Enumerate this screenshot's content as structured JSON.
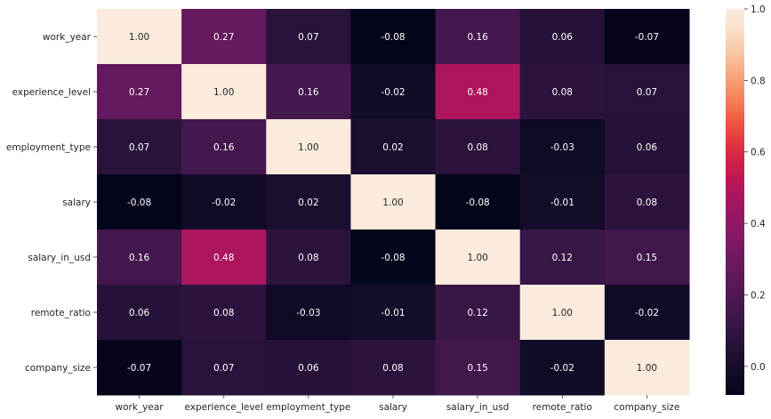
{
  "chart_data": {
    "type": "heatmap",
    "title": "",
    "xlabel": "",
    "ylabel": "",
    "rows": [
      "work_year",
      "experience_level",
      "employment_type",
      "salary",
      "salary_in_usd",
      "remote_ratio",
      "company_size"
    ],
    "columns": [
      "work_year",
      "experience_level",
      "employment_type",
      "salary",
      "salary_in_usd",
      "remote_ratio",
      "company_size"
    ],
    "values": [
      [
        1.0,
        0.27,
        0.07,
        -0.08,
        0.16,
        0.06,
        -0.07
      ],
      [
        0.27,
        1.0,
        0.16,
        -0.02,
        0.48,
        0.08,
        0.07
      ],
      [
        0.07,
        0.16,
        1.0,
        0.02,
        0.08,
        -0.03,
        0.06
      ],
      [
        -0.08,
        -0.02,
        0.02,
        1.0,
        -0.08,
        -0.01,
        0.08
      ],
      [
        0.16,
        0.48,
        0.08,
        -0.08,
        1.0,
        0.12,
        0.15
      ],
      [
        0.06,
        0.08,
        -0.03,
        -0.01,
        0.12,
        1.0,
        -0.02
      ],
      [
        -0.07,
        0.07,
        0.06,
        0.08,
        0.15,
        -0.02,
        1.0
      ]
    ],
    "value_format": "2 decimals",
    "colorbar": {
      "range": [
        -0.08,
        1.0
      ],
      "ticks": [
        "0.0",
        "0.2",
        "0.4",
        "0.6",
        "0.8",
        "1.0"
      ],
      "colormap": "rocket"
    }
  }
}
